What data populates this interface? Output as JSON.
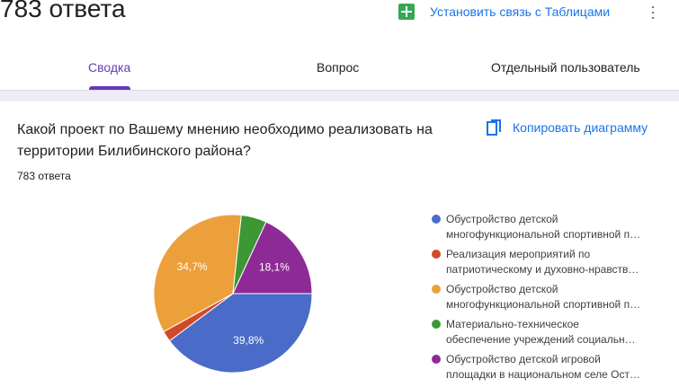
{
  "header": {
    "response_count": "783 ответа",
    "sheets_link": "Установить связь с Таблицами",
    "more_icon": "more-vert-icon"
  },
  "tabs": [
    {
      "label": "Сводка",
      "active": true
    },
    {
      "label": "Вопрос"
    },
    {
      "label": "Отдельный пользователь"
    }
  ],
  "question": {
    "title": "Какой проект по Вашему мнению необходимо реализовать на территории Билибинского района?",
    "count": "783 ответа",
    "copy_label": "Копировать диаграмму"
  },
  "chart_data": {
    "type": "pie",
    "legend_position": "right",
    "series": [
      {
        "name": "Обустройство детской многофункциональной спортивной п…",
        "line1": "Обустройство детской",
        "line2": "многофункциональной спортивной п…",
        "value": 39.8,
        "label": "39,8%",
        "color": "#4a6cc8"
      },
      {
        "name": "Реализация мероприятий по патриотическому и духовно-нравств…",
        "line1": "Реализация мероприятий по",
        "line2": "патриотическому и духовно-нравств…",
        "value": 2.2,
        "label": "",
        "color": "#d04a29"
      },
      {
        "name": "Обустройство детской многофункциональной спортивной п…",
        "line1": "Обустройство детской",
        "line2": "многофункциональной спортивной п…",
        "value": 34.7,
        "label": "34,7%",
        "color": "#eba03c"
      },
      {
        "name": "Материально-техническое обеспечение учреждений социальн…",
        "line1": "Материально-техническое",
        "line2": "обеспечение учреждений социальн…",
        "value": 5.2,
        "label": "",
        "color": "#3d9734"
      },
      {
        "name": "Обустройство детской игровой площадки в национальном селе Ост…",
        "line1": "Обустройство детской игровой",
        "line2": "площадки в национальном селе Ост…",
        "value": 18.1,
        "label": "18,1%",
        "color": "#8e2a96"
      }
    ]
  }
}
